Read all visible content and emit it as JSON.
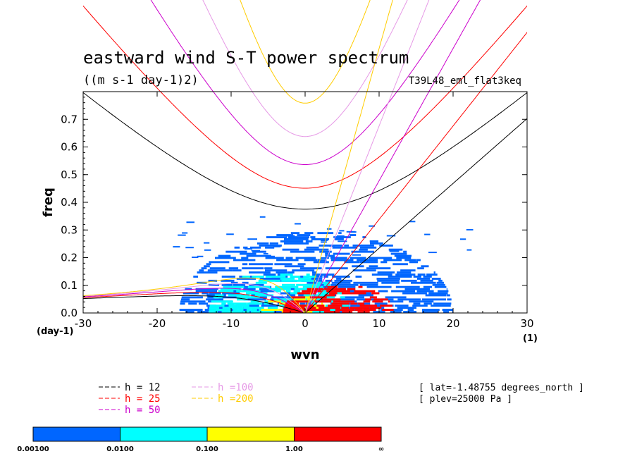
{
  "chart_data": {
    "type": "heatmap",
    "title": "eastward wind S-T power spectrum",
    "subtitle": "((m s-1 day-1)2)",
    "run_label": "T39L48_eml_flat3keq",
    "xlabel": "wvn",
    "ylabel": "freq",
    "x_unit_label": "(1)",
    "y_unit_label": "(day-1)",
    "xlim": [
      -30,
      30
    ],
    "ylim": [
      0,
      0.8
    ],
    "x_ticks": [
      "-30",
      "-20",
      "-10",
      "0",
      "10",
      "20",
      "30"
    ],
    "x_tick_values": [
      -30,
      -20,
      -10,
      0,
      10,
      20,
      30
    ],
    "y_ticks": [
      "0.0",
      "0.1",
      "0.2",
      "0.3",
      "0.4",
      "0.5",
      "0.6",
      "0.7"
    ],
    "y_tick_values": [
      0,
      0.1,
      0.2,
      0.3,
      0.4,
      0.5,
      0.6,
      0.7
    ],
    "dispersion_curves": [
      {
        "label": "h = 12",
        "h": 12,
        "color": "#000000"
      },
      {
        "label": "h = 25",
        "h": 25,
        "color": "#ff0000"
      },
      {
        "label": "h = 50",
        "h": 50,
        "color": "#cc00cc"
      },
      {
        "label": "h =100",
        "h": 100,
        "color": "#e699e6"
      },
      {
        "label": "h =200",
        "h": 200,
        "color": "#ffcc00"
      }
    ],
    "info": [
      "[ lat=-1.48755 degrees_north ]",
      "[ plev=25000 Pa ]"
    ],
    "colorbar": {
      "colors": [
        "#0066ff",
        "#00ffff",
        "#ffff00",
        "#ff0000"
      ],
      "labels": [
        "0.00100",
        "0.0100",
        "0.100",
        "1.00",
        "∞"
      ]
    },
    "spectrum_regions": [
      {
        "level": 0,
        "xmin": -17,
        "xmax": 20,
        "ymax": 0.29
      },
      {
        "level": 1,
        "xmin": -13,
        "xmax": 6,
        "ymax": 0.15
      },
      {
        "level": 2,
        "xmin": -6,
        "xmax": 3,
        "ymax": 0.06
      },
      {
        "level": 3,
        "xmin": -3,
        "xmax": 12,
        "ymax": 0.1
      }
    ],
    "grid": false
  }
}
